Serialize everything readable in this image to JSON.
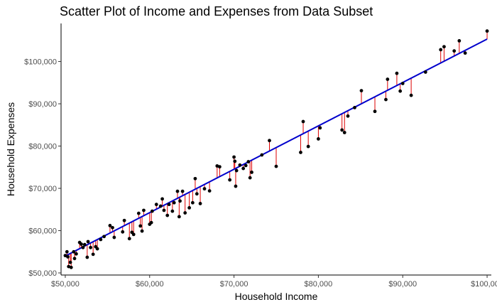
{
  "chart_data": {
    "type": "scatter",
    "title": "Scatter Plot of Income and Expenses from Data Subset",
    "xlabel": "Household Income",
    "ylabel": "Household Expenses",
    "xlim": [
      49500,
      100500
    ],
    "ylim": [
      49500,
      109000
    ],
    "grid": false,
    "x_ticks": [
      50000,
      60000,
      70000,
      80000,
      90000,
      100000
    ],
    "x_tick_labels": [
      "$50,000",
      "$60,000",
      "$70,000",
      "$80,000",
      "$90,000",
      "$100,000"
    ],
    "y_ticks": [
      50000,
      60000,
      70000,
      80000,
      90000,
      100000
    ],
    "y_tick_labels": [
      "$50,000",
      "$60,000",
      "$70,000",
      "$80,000",
      "$90,000",
      "$100,000"
    ],
    "regression_line": {
      "color": "#0000cc",
      "intercept": 2700,
      "slope": 1.026
    },
    "residual_color": "#dd0000",
    "point_color": "#000000",
    "points": [
      [
        50000,
        54100
      ],
      [
        50200,
        55000
      ],
      [
        50300,
        53800
      ],
      [
        50400,
        51500
      ],
      [
        50600,
        52500
      ],
      [
        50700,
        51300
      ],
      [
        51000,
        55000
      ],
      [
        51100,
        53400
      ],
      [
        51300,
        54500
      ],
      [
        51700,
        57200
      ],
      [
        51900,
        56800
      ],
      [
        52100,
        56000
      ],
      [
        52300,
        56700
      ],
      [
        52600,
        53700
      ],
      [
        52700,
        57400
      ],
      [
        53000,
        56000
      ],
      [
        53300,
        54400
      ],
      [
        53600,
        56200
      ],
      [
        53800,
        55700
      ],
      [
        54200,
        57900
      ],
      [
        54600,
        58600
      ],
      [
        55300,
        61200
      ],
      [
        55600,
        60700
      ],
      [
        55800,
        58400
      ],
      [
        56800,
        59700
      ],
      [
        57000,
        62400
      ],
      [
        57600,
        58100
      ],
      [
        57900,
        59600
      ],
      [
        58100,
        59100
      ],
      [
        58700,
        64100
      ],
      [
        58900,
        61100
      ],
      [
        59100,
        59900
      ],
      [
        59300,
        64800
      ],
      [
        60000,
        61500
      ],
      [
        60200,
        61900
      ],
      [
        60300,
        64600
      ],
      [
        60800,
        66200
      ],
      [
        61300,
        65800
      ],
      [
        61500,
        67500
      ],
      [
        61700,
        64800
      ],
      [
        62100,
        63600
      ],
      [
        62300,
        66200
      ],
      [
        62700,
        64600
      ],
      [
        62900,
        66600
      ],
      [
        63300,
        69300
      ],
      [
        63500,
        63300
      ],
      [
        63600,
        67000
      ],
      [
        63900,
        69300
      ],
      [
        64200,
        64200
      ],
      [
        64700,
        65400
      ],
      [
        65100,
        66600
      ],
      [
        65400,
        72300
      ],
      [
        65600,
        68700
      ],
      [
        66000,
        66400
      ],
      [
        66500,
        69900
      ],
      [
        67100,
        69400
      ],
      [
        68000,
        75300
      ],
      [
        68300,
        75100
      ],
      [
        69500,
        72000
      ],
      [
        70000,
        77400
      ],
      [
        70100,
        76400
      ],
      [
        70200,
        70500
      ],
      [
        70300,
        74200
      ],
      [
        70700,
        75500
      ],
      [
        71100,
        74700
      ],
      [
        71400,
        75400
      ],
      [
        71700,
        76300
      ],
      [
        71900,
        72500
      ],
      [
        72100,
        73800
      ],
      [
        73300,
        77900
      ],
      [
        74200,
        81300
      ],
      [
        75000,
        75200
      ],
      [
        77900,
        78500
      ],
      [
        78200,
        85800
      ],
      [
        78800,
        79900
      ],
      [
        80000,
        81700
      ],
      [
        80200,
        84300
      ],
      [
        82800,
        83800
      ],
      [
        83100,
        83200
      ],
      [
        83500,
        87100
      ],
      [
        84300,
        89100
      ],
      [
        85100,
        93100
      ],
      [
        86700,
        88200
      ],
      [
        88000,
        91000
      ],
      [
        88200,
        95800
      ],
      [
        89300,
        97200
      ],
      [
        89700,
        93000
      ],
      [
        90000,
        94800
      ],
      [
        91000,
        92000
      ],
      [
        92700,
        97500
      ],
      [
        94500,
        102800
      ],
      [
        94900,
        103500
      ],
      [
        96100,
        102500
      ],
      [
        96700,
        104900
      ],
      [
        97400,
        102000
      ],
      [
        100000,
        107200
      ]
    ]
  }
}
